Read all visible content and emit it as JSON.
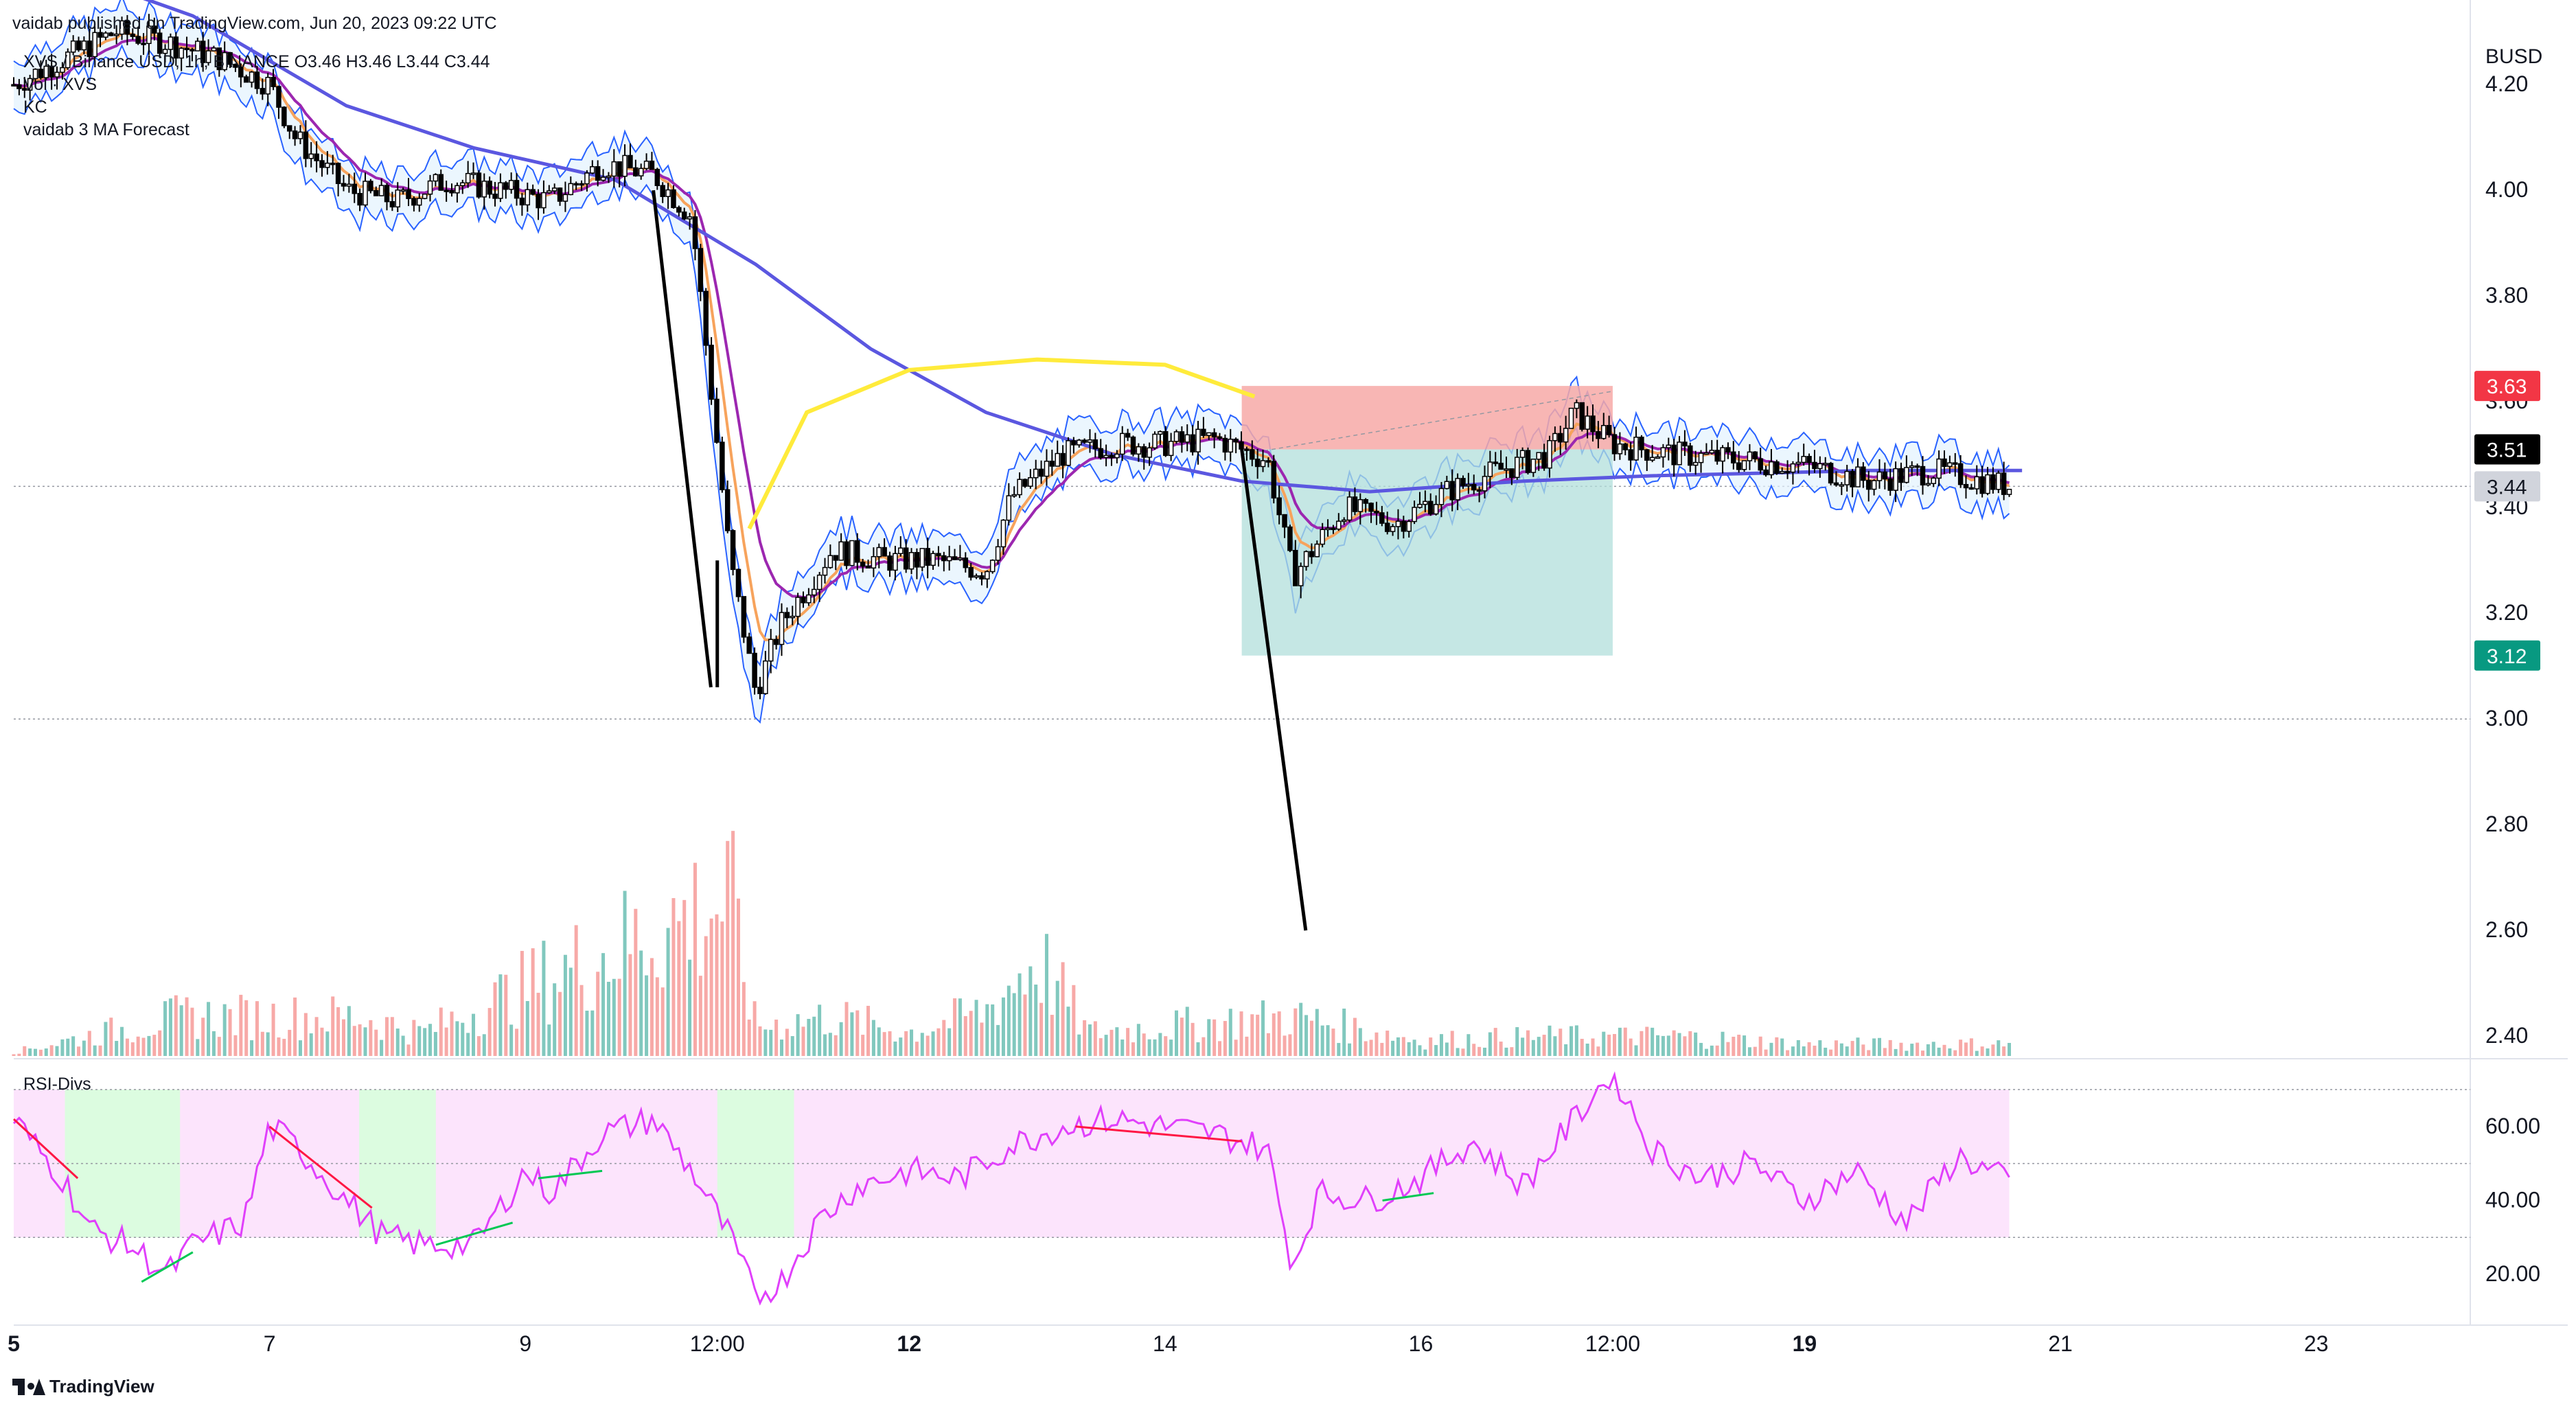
{
  "header": {
    "published": "vaidab published on TradingView.com, Jun 20, 2023 09:22 UTC",
    "symbol_line": "XVS / Binance USD, 1h, BINANCE  O3.46  H3.46  L3.44  C3.44",
    "indicator_vol": "Vol · XVS",
    "indicator_kc": "KC",
    "indicator_ma": "vaidab 3 MA Forecast",
    "rsi_label": "RSI-Divs"
  },
  "footer": {
    "brand": "TradingView"
  },
  "chart_data": [
    {
      "type": "candlestick",
      "currency": "BUSD",
      "ylim": [
        2.36,
        4.36
      ],
      "yticks": [
        "4.20",
        "4.00",
        "3.80",
        "3.60",
        "3.40",
        "3.20",
        "3.00",
        "2.80",
        "2.60",
        "2.40"
      ],
      "xticks": [
        "5",
        "7",
        "9",
        "12:00",
        "12",
        "14",
        "16",
        "12:00",
        "19",
        "21",
        "23"
      ],
      "bold_xticks": [
        "5",
        "12",
        "19"
      ],
      "last_price": 3.44,
      "price_labels": [
        {
          "value": "3.63",
          "color": "#f23645"
        },
        {
          "value": "3.51",
          "color": "#000000"
        },
        {
          "value": "3.44",
          "color": "#d1d4dc"
        },
        {
          "value": "3.12",
          "color": "#089981"
        }
      ],
      "position_tool": {
        "entry": 3.51,
        "stop": 3.63,
        "target": 3.12,
        "risk_color": "#f7a9a7",
        "reward_color": "#b2dfdb"
      },
      "colors": {
        "up": "#000000",
        "down": "#000000",
        "kc_band": "#2962ff",
        "kc_fill": "#e3f2fd",
        "ma_fast": "#f7a35c",
        "ma_mid": "#9c27b0",
        "ma_slow": "#5b57e0",
        "forecast": "#ffeb3b",
        "vol_up": "#81c8be",
        "vol_down": "#f7a9a7"
      },
      "ma_slow_path": [
        [
          5.0,
          4.45
        ],
        [
          6.4,
          4.33
        ],
        [
          7.6,
          4.16
        ],
        [
          8.6,
          4.08
        ],
        [
          9.7,
          4.02
        ],
        [
          10.8,
          3.86
        ],
        [
          11.7,
          3.7
        ],
        [
          12.6,
          3.58
        ],
        [
          13.6,
          3.5
        ],
        [
          14.6,
          3.45
        ],
        [
          15.6,
          3.43
        ],
        [
          16.8,
          3.45
        ],
        [
          17.8,
          3.46
        ],
        [
          19.5,
          3.47
        ],
        [
          20.7,
          3.47
        ]
      ],
      "forecast_path": [
        [
          10.75,
          3.36
        ],
        [
          11.2,
          3.58
        ],
        [
          12.0,
          3.66
        ],
        [
          13.0,
          3.68
        ],
        [
          14.0,
          3.67
        ],
        [
          14.7,
          3.61
        ]
      ],
      "price_path": [
        [
          5.0,
          4.2
        ],
        [
          5.4,
          4.25
        ],
        [
          5.8,
          4.3
        ],
        [
          6.2,
          4.28
        ],
        [
          6.6,
          4.25
        ],
        [
          7.0,
          4.2
        ],
        [
          7.2,
          4.1
        ],
        [
          7.6,
          4.0
        ],
        [
          8.0,
          3.98
        ],
        [
          8.4,
          4.02
        ],
        [
          8.8,
          4.0
        ],
        [
          9.2,
          3.98
        ],
        [
          9.6,
          4.05
        ],
        [
          10.0,
          4.03
        ],
        [
          10.3,
          3.95
        ],
        [
          10.6,
          3.3
        ],
        [
          10.8,
          3.05
        ],
        [
          11.0,
          3.18
        ],
        [
          11.4,
          3.32
        ],
        [
          11.8,
          3.3
        ],
        [
          12.2,
          3.3
        ],
        [
          12.6,
          3.28
        ],
        [
          12.8,
          3.42
        ],
        [
          13.2,
          3.5
        ],
        [
          13.6,
          3.52
        ],
        [
          14.0,
          3.52
        ],
        [
          14.4,
          3.53
        ],
        [
          14.8,
          3.49
        ],
        [
          15.0,
          3.27
        ],
        [
          15.4,
          3.4
        ],
        [
          15.8,
          3.37
        ],
        [
          16.2,
          3.43
        ],
        [
          16.6,
          3.47
        ],
        [
          17.0,
          3.5
        ],
        [
          17.2,
          3.58
        ],
        [
          17.5,
          3.52
        ],
        [
          18.0,
          3.5
        ],
        [
          18.5,
          3.49
        ],
        [
          19.0,
          3.48
        ],
        [
          19.5,
          3.45
        ],
        [
          20.0,
          3.47
        ],
        [
          20.6,
          3.44
        ]
      ],
      "volume_path": [
        [
          5.0,
          0.02
        ],
        [
          6.3,
          0.2
        ],
        [
          7.7,
          0.2
        ],
        [
          8.2,
          0.12
        ],
        [
          10.6,
          0.8
        ],
        [
          10.8,
          0.15
        ],
        [
          11.4,
          0.2
        ],
        [
          12.0,
          0.12
        ],
        [
          12.6,
          0.23
        ],
        [
          13.0,
          0.5
        ],
        [
          13.4,
          0.12
        ],
        [
          15.0,
          0.2
        ],
        [
          16.0,
          0.08
        ],
        [
          17.0,
          0.1
        ],
        [
          18.0,
          0.1
        ],
        [
          19.0,
          0.06
        ],
        [
          20.6,
          0.06
        ]
      ],
      "trend_lines": [
        {
          "x1": 10.0,
          "y1": 4.0,
          "x2": 10.45,
          "y2": 3.06
        },
        {
          "x1": 10.5,
          "y1": 3.3,
          "x2": 10.5,
          "y2": 3.06
        },
        {
          "x1": 14.6,
          "y1": 3.51,
          "x2": 15.1,
          "y2": 2.6
        }
      ]
    },
    {
      "type": "line",
      "title": "RSI-Divs",
      "ylim": [
        10,
        75
      ],
      "yticks": [
        "60.00",
        "40.00",
        "20.00"
      ],
      "bands": [
        70,
        50,
        30
      ],
      "colors": {
        "rsi": "#e040fb",
        "bull": "#00c853",
        "bear": "#ff1744",
        "bg": "#fce4fc",
        "oversold_bg": "#dcfce0"
      },
      "rsi_path": [
        [
          5.0,
          62
        ],
        [
          5.4,
          45
        ],
        [
          5.6,
          32
        ],
        [
          5.9,
          28
        ],
        [
          6.2,
          20
        ],
        [
          6.4,
          28
        ],
        [
          6.8,
          34
        ],
        [
          7.0,
          60
        ],
        [
          7.2,
          55
        ],
        [
          7.6,
          40
        ],
        [
          7.9,
          30
        ],
        [
          8.2,
          28
        ],
        [
          8.6,
          28
        ],
        [
          9.0,
          48
        ],
        [
          9.2,
          42
        ],
        [
          9.6,
          58
        ],
        [
          10.0,
          62
        ],
        [
          10.3,
          48
        ],
        [
          10.6,
          30
        ],
        [
          10.8,
          14
        ],
        [
          11.0,
          18
        ],
        [
          11.3,
          35
        ],
        [
          11.6,
          44
        ],
        [
          12.0,
          48
        ],
        [
          12.4,
          46
        ],
        [
          12.8,
          55
        ],
        [
          13.2,
          60
        ],
        [
          13.6,
          62
        ],
        [
          14.0,
          60
        ],
        [
          14.4,
          58
        ],
        [
          14.8,
          54
        ],
        [
          15.0,
          22
        ],
        [
          15.2,
          42
        ],
        [
          15.6,
          40
        ],
        [
          16.0,
          46
        ],
        [
          16.4,
          56
        ],
        [
          16.8,
          44
        ],
        [
          17.2,
          62
        ],
        [
          17.5,
          75
        ],
        [
          17.8,
          54
        ],
        [
          18.2,
          46
        ],
        [
          18.6,
          50
        ],
        [
          19.0,
          40
        ],
        [
          19.4,
          48
        ],
        [
          19.8,
          34
        ],
        [
          20.2,
          52
        ],
        [
          20.6,
          45
        ]
      ]
    }
  ]
}
